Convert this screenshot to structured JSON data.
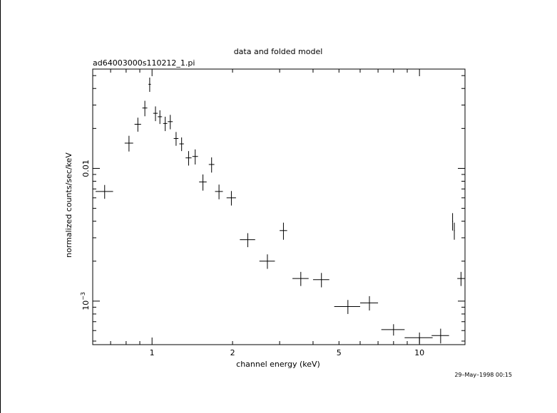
{
  "chart_data": {
    "type": "scatter",
    "title": "data and folded model",
    "subtitle": "ad64003000s110212_1.pi",
    "xlabel": "channel energy (keV)",
    "ylabel": "normalized counts/sec/keV",
    "timestamp": "29–May–1998 00:15",
    "x_scale": "log",
    "y_scale": "log",
    "xlim": [
      0.6,
      14.8
    ],
    "ylim": [
      0.00047,
      0.056
    ],
    "x_ticks": [
      {
        "value": 1,
        "label": "1"
      },
      {
        "value": 2,
        "label": "2"
      },
      {
        "value": 5,
        "label": "5"
      },
      {
        "value": 10,
        "label": "10"
      }
    ],
    "y_ticks": [
      {
        "value": 0.001,
        "label": "10",
        "sup": "−3"
      },
      {
        "value": 0.01,
        "label": "0.01",
        "sup": ""
      }
    ],
    "points": [
      {
        "x": 0.665,
        "y": 0.0067,
        "xerr": 0.05,
        "yerr": 0.0008
      },
      {
        "x": 0.82,
        "y": 0.0155,
        "xerr": 0.03,
        "yerr": 0.0021
      },
      {
        "x": 0.885,
        "y": 0.0215,
        "xerr": 0.025,
        "yerr": 0.0026
      },
      {
        "x": 0.94,
        "y": 0.0285,
        "xerr": 0.02,
        "yerr": 0.0038
      },
      {
        "x": 0.98,
        "y": 0.043,
        "xerr": 0.01,
        "yerr": 0.0053
      },
      {
        "x": 1.03,
        "y": 0.026,
        "xerr": 0.02,
        "yerr": 0.0033
      },
      {
        "x": 1.07,
        "y": 0.0245,
        "xerr": 0.02,
        "yerr": 0.0029
      },
      {
        "x": 1.12,
        "y": 0.0218,
        "xerr": 0.02,
        "yerr": 0.0027
      },
      {
        "x": 1.17,
        "y": 0.0225,
        "xerr": 0.025,
        "yerr": 0.0028
      },
      {
        "x": 1.23,
        "y": 0.0168,
        "xerr": 0.025,
        "yerr": 0.002
      },
      {
        "x": 1.29,
        "y": 0.0153,
        "xerr": 0.025,
        "yerr": 0.0018
      },
      {
        "x": 1.37,
        "y": 0.012,
        "xerr": 0.035,
        "yerr": 0.0015
      },
      {
        "x": 1.45,
        "y": 0.0123,
        "xerr": 0.035,
        "yerr": 0.0016
      },
      {
        "x": 1.55,
        "y": 0.0079,
        "xerr": 0.05,
        "yerr": 0.0011
      },
      {
        "x": 1.67,
        "y": 0.0107,
        "xerr": 0.04,
        "yerr": 0.0014
      },
      {
        "x": 1.78,
        "y": 0.0067,
        "xerr": 0.06,
        "yerr": 0.00085
      },
      {
        "x": 1.98,
        "y": 0.006,
        "xerr": 0.08,
        "yerr": 0.00075
      },
      {
        "x": 2.28,
        "y": 0.0029,
        "xerr": 0.15,
        "yerr": 0.00035
      },
      {
        "x": 2.7,
        "y": 0.002,
        "xerr": 0.18,
        "yerr": 0.00025
      },
      {
        "x": 3.1,
        "y": 0.0034,
        "xerr": 0.1,
        "yerr": 0.0005
      },
      {
        "x": 3.6,
        "y": 0.00148,
        "xerr": 0.25,
        "yerr": 0.00018
      },
      {
        "x": 4.3,
        "y": 0.00145,
        "xerr": 0.3,
        "yerr": 0.00018
      },
      {
        "x": 5.4,
        "y": 0.00091,
        "xerr": 0.6,
        "yerr": 0.00011
      },
      {
        "x": 6.5,
        "y": 0.00097,
        "xerr": 0.5,
        "yerr": 0.00012
      },
      {
        "x": 8,
        "y": 0.00061,
        "xerr": 0.8,
        "yerr": 6e-05
      },
      {
        "x": 10,
        "y": 0.00053,
        "xerr": 1.2,
        "yerr": 5e-05
      },
      {
        "x": 12,
        "y": 0.00055,
        "xerr": 0.9,
        "yerr": 7e-05
      },
      {
        "x": 13.3,
        "y": 0.004,
        "xerr": 0.05,
        "yerr": 0.0006
      },
      {
        "x": 13.5,
        "y": 0.0034,
        "xerr": 0.05,
        "yerr": 0.0005
      },
      {
        "x": 14.3,
        "y": 0.00148,
        "xerr": 0.45,
        "yerr": 0.00018
      }
    ]
  }
}
